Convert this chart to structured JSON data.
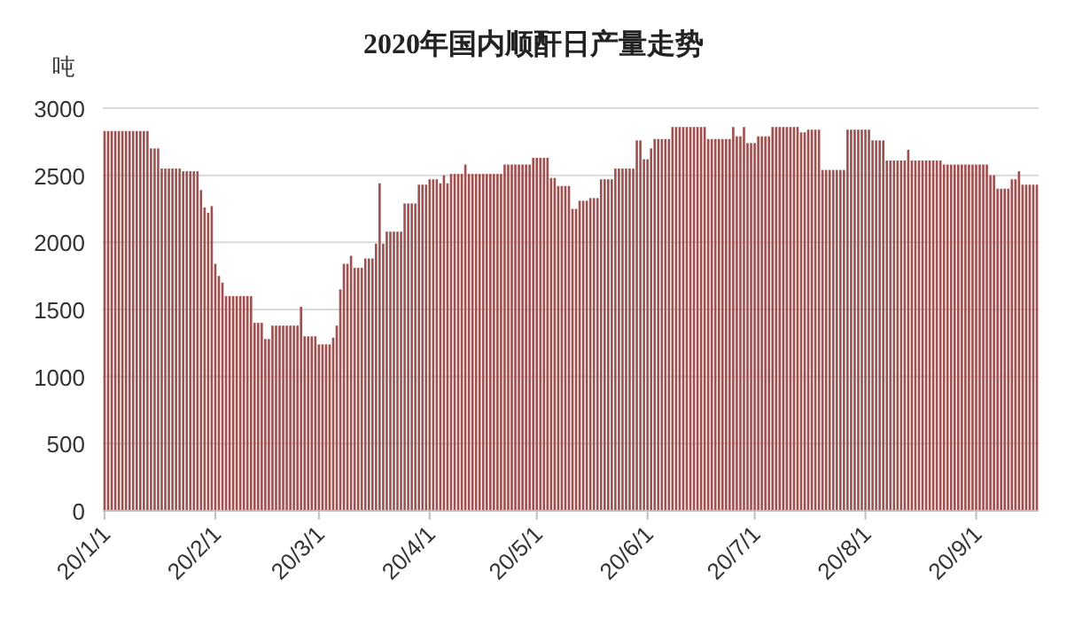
{
  "chart_data": {
    "type": "bar",
    "title": "2020年国内顺酐日产量走势",
    "ylabel": "吨",
    "color": "#a0504f",
    "grid": "y",
    "ylim": [
      0,
      3000
    ],
    "yticks": [
      0,
      500,
      1000,
      1500,
      2000,
      2500,
      3000
    ],
    "xlim": [
      "2019-12-31T12:00",
      "2020-09-18T12:00"
    ],
    "xticks": [
      {
        "value": "2020-01-01",
        "label": "20/1/1"
      },
      {
        "value": "2020-02-01",
        "label": "20/2/1"
      },
      {
        "value": "2020-03-01",
        "label": "20/3/1"
      },
      {
        "value": "2020-04-01",
        "label": "20/4/1"
      },
      {
        "value": "2020-05-01",
        "label": "20/5/1"
      },
      {
        "value": "2020-06-01",
        "label": "20/6/1"
      },
      {
        "value": "2020-07-01",
        "label": "20/7/1"
      },
      {
        "value": "2020-08-01",
        "label": "20/8/1"
      },
      {
        "value": "2020-09-01",
        "label": "20/9/1"
      }
    ],
    "x": [
      "2020-01-01",
      "2020-01-02",
      "2020-01-03",
      "2020-01-04",
      "2020-01-05",
      "2020-01-06",
      "2020-01-07",
      "2020-01-08",
      "2020-01-09",
      "2020-01-10",
      "2020-01-11",
      "2020-01-12",
      "2020-01-13",
      "2020-01-14",
      "2020-01-15",
      "2020-01-16",
      "2020-01-17",
      "2020-01-18",
      "2020-01-19",
      "2020-01-20",
      "2020-01-21",
      "2020-01-22",
      "2020-01-23",
      "2020-01-24",
      "2020-01-25",
      "2020-01-26",
      "2020-01-27",
      "2020-01-28",
      "2020-01-29",
      "2020-01-30",
      "2020-01-31",
      "2020-02-01",
      "2020-02-02",
      "2020-02-03",
      "2020-02-04",
      "2020-02-05",
      "2020-02-06",
      "2020-02-07",
      "2020-02-08",
      "2020-02-09",
      "2020-02-10",
      "2020-02-11",
      "2020-02-12",
      "2020-02-13",
      "2020-02-14",
      "2020-02-15",
      "2020-02-16",
      "2020-02-17",
      "2020-02-18",
      "2020-02-19",
      "2020-02-20",
      "2020-02-21",
      "2020-02-22",
      "2020-02-23",
      "2020-02-24",
      "2020-02-25",
      "2020-02-26",
      "2020-02-27",
      "2020-02-28",
      "2020-02-29",
      "2020-03-01",
      "2020-03-02",
      "2020-03-03",
      "2020-03-04",
      "2020-03-05",
      "2020-03-06",
      "2020-03-07",
      "2020-03-08",
      "2020-03-09",
      "2020-03-10",
      "2020-03-11",
      "2020-03-12",
      "2020-03-13",
      "2020-03-14",
      "2020-03-15",
      "2020-03-16",
      "2020-03-17",
      "2020-03-18",
      "2020-03-19",
      "2020-03-20",
      "2020-03-21",
      "2020-03-22",
      "2020-03-23",
      "2020-03-24",
      "2020-03-25",
      "2020-03-26",
      "2020-03-27",
      "2020-03-28",
      "2020-03-29",
      "2020-03-30",
      "2020-03-31",
      "2020-04-01",
      "2020-04-02",
      "2020-04-03",
      "2020-04-04",
      "2020-04-05",
      "2020-04-06",
      "2020-04-07",
      "2020-04-08",
      "2020-04-09",
      "2020-04-10",
      "2020-04-11",
      "2020-04-12",
      "2020-04-13",
      "2020-04-14",
      "2020-04-15",
      "2020-04-16",
      "2020-04-17",
      "2020-04-18",
      "2020-04-19",
      "2020-04-20",
      "2020-04-21",
      "2020-04-22",
      "2020-04-23",
      "2020-04-24",
      "2020-04-25",
      "2020-04-26",
      "2020-04-27",
      "2020-04-28",
      "2020-04-29",
      "2020-04-30",
      "2020-05-01",
      "2020-05-02",
      "2020-05-03",
      "2020-05-04",
      "2020-05-05",
      "2020-05-06",
      "2020-05-07",
      "2020-05-08",
      "2020-05-09",
      "2020-05-10",
      "2020-05-11",
      "2020-05-12",
      "2020-05-13",
      "2020-05-14",
      "2020-05-15",
      "2020-05-16",
      "2020-05-17",
      "2020-05-18",
      "2020-05-19",
      "2020-05-20",
      "2020-05-21",
      "2020-05-22",
      "2020-05-23",
      "2020-05-24",
      "2020-05-25",
      "2020-05-26",
      "2020-05-27",
      "2020-05-28",
      "2020-05-29",
      "2020-05-30",
      "2020-05-31",
      "2020-06-01",
      "2020-06-02",
      "2020-06-03",
      "2020-06-04",
      "2020-06-05",
      "2020-06-06",
      "2020-06-07",
      "2020-06-08",
      "2020-06-09",
      "2020-06-10",
      "2020-06-11",
      "2020-06-12",
      "2020-06-13",
      "2020-06-14",
      "2020-06-15",
      "2020-06-16",
      "2020-06-17",
      "2020-06-18",
      "2020-06-19",
      "2020-06-20",
      "2020-06-21",
      "2020-06-22",
      "2020-06-23",
      "2020-06-24",
      "2020-06-25",
      "2020-06-26",
      "2020-06-27",
      "2020-06-28",
      "2020-06-29",
      "2020-06-30",
      "2020-07-01",
      "2020-07-02",
      "2020-07-03",
      "2020-07-04",
      "2020-07-05",
      "2020-07-06",
      "2020-07-07",
      "2020-07-08",
      "2020-07-09",
      "2020-07-10",
      "2020-07-11",
      "2020-07-12",
      "2020-07-13",
      "2020-07-14",
      "2020-07-15",
      "2020-07-16",
      "2020-07-17",
      "2020-07-18",
      "2020-07-19",
      "2020-07-20",
      "2020-07-21",
      "2020-07-22",
      "2020-07-23",
      "2020-07-24",
      "2020-07-25",
      "2020-07-26",
      "2020-07-27",
      "2020-07-28",
      "2020-07-29",
      "2020-07-30",
      "2020-07-31",
      "2020-08-01",
      "2020-08-02",
      "2020-08-03",
      "2020-08-04",
      "2020-08-05",
      "2020-08-06",
      "2020-08-07",
      "2020-08-08",
      "2020-08-09",
      "2020-08-10",
      "2020-08-11",
      "2020-08-12",
      "2020-08-13",
      "2020-08-14",
      "2020-08-15",
      "2020-08-16",
      "2020-08-17",
      "2020-08-18",
      "2020-08-19",
      "2020-08-20",
      "2020-08-21",
      "2020-08-22",
      "2020-08-23",
      "2020-08-24",
      "2020-08-25",
      "2020-08-26",
      "2020-08-27",
      "2020-08-28",
      "2020-08-29",
      "2020-08-30",
      "2020-08-31",
      "2020-09-01",
      "2020-09-02",
      "2020-09-03",
      "2020-09-04",
      "2020-09-05",
      "2020-09-06",
      "2020-09-07",
      "2020-09-08",
      "2020-09-09",
      "2020-09-10",
      "2020-09-11",
      "2020-09-12",
      "2020-09-13",
      "2020-09-14",
      "2020-09-15",
      "2020-09-16",
      "2020-09-17",
      "2020-09-18"
    ],
    "values": [
      2830,
      2830,
      2830,
      2830,
      2830,
      2830,
      2830,
      2830,
      2830,
      2830,
      2830,
      2830,
      2830,
      2700,
      2700,
      2700,
      2550,
      2550,
      2550,
      2550,
      2550,
      2550,
      2530,
      2530,
      2530,
      2530,
      2530,
      2390,
      2260,
      2220,
      2270,
      1840,
      1750,
      1700,
      1600,
      1600,
      1600,
      1600,
      1600,
      1600,
      1600,
      1600,
      1400,
      1400,
      1400,
      1280,
      1280,
      1380,
      1380,
      1380,
      1380,
      1380,
      1380,
      1380,
      1380,
      1520,
      1300,
      1300,
      1300,
      1300,
      1240,
      1240,
      1240,
      1240,
      1290,
      1380,
      1650,
      1840,
      1840,
      1900,
      1810,
      1810,
      1810,
      1880,
      1880,
      1880,
      1990,
      2440,
      1990,
      2080,
      2080,
      2080,
      2080,
      2080,
      2290,
      2290,
      2290,
      2290,
      2430,
      2430,
      2430,
      2470,
      2470,
      2470,
      2440,
      2500,
      2440,
      2510,
      2510,
      2510,
      2510,
      2580,
      2510,
      2510,
      2510,
      2510,
      2510,
      2510,
      2510,
      2510,
      2510,
      2510,
      2580,
      2580,
      2580,
      2580,
      2580,
      2580,
      2580,
      2580,
      2630,
      2630,
      2630,
      2630,
      2630,
      2480,
      2480,
      2420,
      2420,
      2420,
      2420,
      2250,
      2250,
      2310,
      2310,
      2310,
      2330,
      2330,
      2330,
      2470,
      2470,
      2470,
      2470,
      2550,
      2550,
      2550,
      2550,
      2550,
      2550,
      2760,
      2760,
      2620,
      2620,
      2700,
      2770,
      2770,
      2770,
      2770,
      2770,
      2860,
      2860,
      2860,
      2860,
      2860,
      2860,
      2860,
      2860,
      2860,
      2860,
      2770,
      2770,
      2770,
      2770,
      2770,
      2770,
      2770,
      2860,
      2790,
      2790,
      2860,
      2740,
      2740,
      2740,
      2790,
      2790,
      2790,
      2790,
      2860,
      2860,
      2860,
      2860,
      2860,
      2860,
      2860,
      2860,
      2820,
      2820,
      2840,
      2840,
      2840,
      2840,
      2540,
      2540,
      2540,
      2540,
      2540,
      2540,
      2540,
      2840,
      2840,
      2840,
      2840,
      2840,
      2840,
      2840,
      2760,
      2760,
      2760,
      2760,
      2610,
      2610,
      2610,
      2610,
      2610,
      2610,
      2690,
      2610,
      2610,
      2610,
      2610,
      2610,
      2610,
      2610,
      2610,
      2610,
      2580,
      2580,
      2580,
      2580,
      2580,
      2580,
      2580,
      2580,
      2580,
      2580,
      2580,
      2580,
      2580,
      2500,
      2500,
      2400,
      2400,
      2400,
      2400,
      2470,
      2470,
      2530,
      2430,
      2430,
      2430,
      2430,
      2430
    ]
  }
}
